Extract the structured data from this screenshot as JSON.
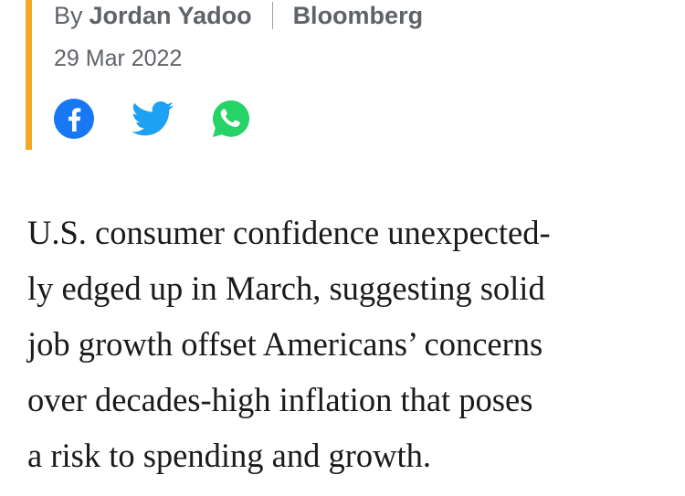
{
  "byline": {
    "by_label": "By",
    "author": "Jordan Yadoo",
    "source": "Bloomberg"
  },
  "date": "29 Mar 2022",
  "share": {
    "facebook_icon": "facebook-icon",
    "twitter_icon": "twitter-icon",
    "whatsapp_icon": "whatsapp-icon"
  },
  "colors": {
    "accent_bar": "#f5a623",
    "facebook": "#1877f2",
    "twitter": "#1da1f2",
    "whatsapp": "#25d366",
    "meta_text": "#5f6368"
  },
  "article": {
    "lines": [
      "U.S. consumer confidence unexpected-",
      "ly edged up in March, suggesting solid",
      "job growth offset Americans’ concerns",
      "over decades-high inflation that poses",
      "a risk to spending and growth."
    ]
  }
}
